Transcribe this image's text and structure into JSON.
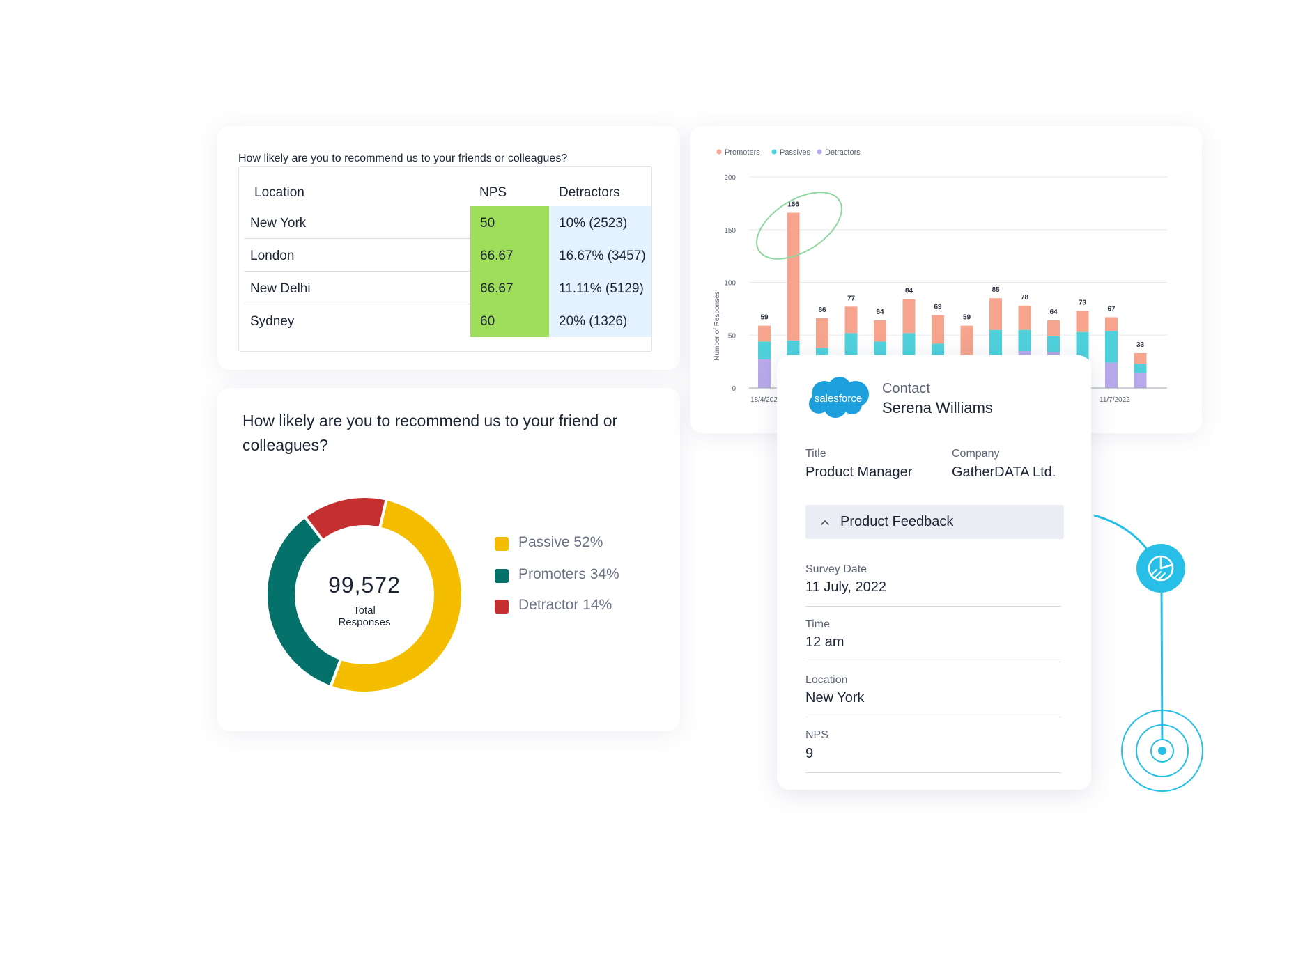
{
  "nps_table": {
    "question": "How likely are you to recommend us to your friends or colleagues?",
    "columns": [
      "Location",
      "NPS",
      "Detractors"
    ],
    "rows": [
      {
        "location": "New York",
        "nps": "50",
        "detractors": "10% (2523)"
      },
      {
        "location": "London",
        "nps": "66.67",
        "detractors": "16.67% (3457)"
      },
      {
        "location": "New Delhi",
        "nps": "66.67",
        "detractors": "11.11% (5129)"
      },
      {
        "location": "Sydney",
        "nps": "60",
        "detractors": "20% (1326)"
      }
    ],
    "colors": {
      "nps_fill": "#9ede5b",
      "detractor_fill": "#e4f2fd"
    }
  },
  "donut": {
    "question": "How likely are you to recommend us to your friend or colleagues?",
    "total_value": "99,572",
    "total_label_line1": "Total",
    "total_label_line2": "Responses",
    "legend": [
      {
        "label": "Passive 52%",
        "color": "#f5bd00"
      },
      {
        "label": "Promoters 34%",
        "color": "#04726a"
      },
      {
        "label": "Detractor 14%",
        "color": "#c52f2f"
      }
    ]
  },
  "chart_data": [
    {
      "type": "pie",
      "categories": [
        "Passive",
        "Promoters",
        "Detractor"
      ],
      "values": [
        52,
        34,
        14
      ],
      "colors": [
        "#f5bd00",
        "#04726a",
        "#c52f2f"
      ],
      "center_text": "99,572 Total Responses"
    },
    {
      "type": "bar",
      "stacked": true,
      "legend": [
        "Promoters",
        "Passives",
        "Detractors"
      ],
      "legend_placement": "top-left",
      "ylabel": "Number of Responses",
      "ylim": [
        0,
        200
      ],
      "yticks": [
        0,
        50,
        100,
        150,
        200
      ],
      "grid": true,
      "x_tick_labels_visible": [
        "18/4/2022",
        "11/7/2022"
      ],
      "totals": [
        59,
        166,
        66,
        77,
        64,
        84,
        69,
        59,
        85,
        78,
        64,
        73,
        67,
        33
      ],
      "series": [
        {
          "name": "Promoters",
          "color": "#f6a48d",
          "values": [
            15,
            121,
            28,
            25,
            20,
            32,
            27,
            31,
            30,
            23,
            15,
            20,
            13,
            10
          ]
        },
        {
          "name": "Passives",
          "color": "#4fd1dc",
          "values": [
            17,
            20,
            14,
            27,
            15,
            22,
            14,
            3,
            25,
            20,
            15,
            28,
            30,
            9
          ]
        },
        {
          "name": "Detractors",
          "color": "#b8a9ea",
          "values": [
            27,
            25,
            24,
            25,
            29,
            30,
            28,
            25,
            30,
            35,
            34,
            25,
            24,
            14
          ]
        }
      ]
    }
  ],
  "contact": {
    "crm_logo_text": "salesforce",
    "heading": "Contact",
    "name": "Serena Williams",
    "title_label": "Title",
    "title_value": "Product Manager",
    "company_label": "Company",
    "company_value": "GatherDATA Ltd.",
    "section_title": "Product Feedback",
    "fields": [
      {
        "label": "Survey Date",
        "value": "11 July, 2022"
      },
      {
        "label": "Time",
        "value": "12 am"
      },
      {
        "label": "Location",
        "value": "New York"
      },
      {
        "label": "NPS",
        "value": "9"
      }
    ],
    "colors": {
      "salesforce_blue": "#1ea0dd",
      "connector": "#27bfe8"
    }
  },
  "icons": [
    "chevron-up-icon",
    "pie-chart-icon",
    "target-icon",
    "salesforce-logo"
  ]
}
